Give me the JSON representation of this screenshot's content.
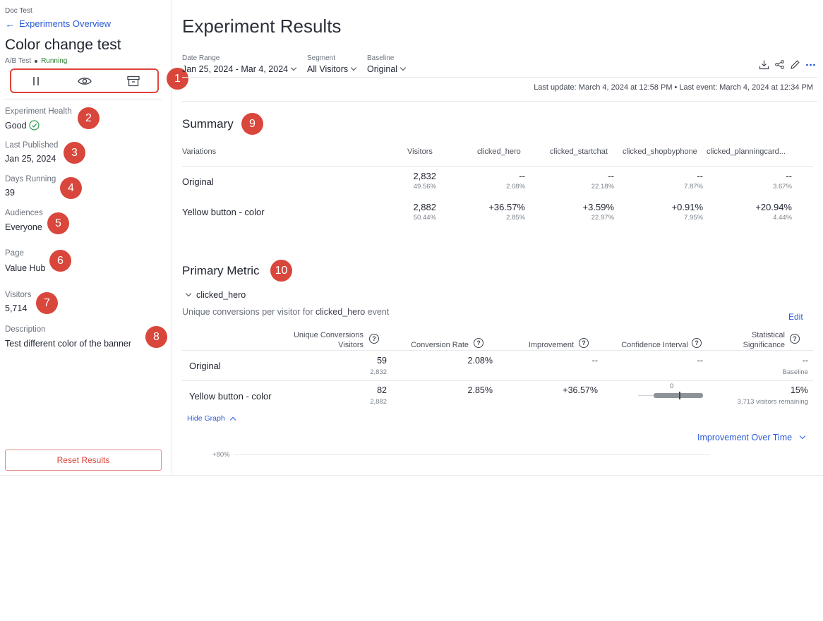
{
  "sidebar": {
    "doc_label": "Doc Test",
    "back_link": "Experiments Overview",
    "title": "Color change test",
    "type": "A/B Test",
    "status": "Running",
    "fields": [
      {
        "label": "Experiment Health",
        "value": "Good",
        "badge": "2"
      },
      {
        "label": "Last Published",
        "value": "Jan 25, 2024",
        "badge": "3"
      },
      {
        "label": "Days Running",
        "value": "39",
        "badge": "4"
      },
      {
        "label": "Audiences",
        "value": "Everyone",
        "badge": "5"
      },
      {
        "label": "Page",
        "value": "Value Hub",
        "badge": "6"
      },
      {
        "label": "Visitors",
        "value": "5,714",
        "badge": "7"
      },
      {
        "label": "Description",
        "value": "Test different color of the banner",
        "badge": "8"
      }
    ],
    "actions_badge": "1",
    "reset_label": "Reset Results"
  },
  "header": {
    "title": "Experiment Results",
    "filters": [
      {
        "label": "Date Range",
        "value": "Jan 25, 2024 - Mar 4, 2024"
      },
      {
        "label": "Segment",
        "value": "All Visitors"
      },
      {
        "label": "Baseline",
        "value": "Original"
      }
    ],
    "last_update": "Last update: March 4, 2024 at 12:58 PM • Last event: March 4, 2024 at 12:34 PM"
  },
  "summary": {
    "title": "Summary",
    "badge": "9",
    "headers": [
      "Variations",
      "Visitors",
      "clicked_hero",
      "clicked_startchat",
      "clicked_shopbyphone",
      "clicked_planningcard..."
    ],
    "rows": [
      {
        "name": "Original",
        "cells": [
          {
            "v": "2,832",
            "s": "49.56%"
          },
          {
            "v": "--",
            "s": "2.08%"
          },
          {
            "v": "--",
            "s": "22.18%"
          },
          {
            "v": "--",
            "s": "7.87%"
          },
          {
            "v": "--",
            "s": "3.67%"
          }
        ]
      },
      {
        "name": "Yellow button - color",
        "cells": [
          {
            "v": "2,882",
            "s": "50.44%"
          },
          {
            "v": "+36.57%",
            "s": "2.85%"
          },
          {
            "v": "+3.59%",
            "s": "22.97%"
          },
          {
            "v": "+0.91%",
            "s": "7.95%"
          },
          {
            "v": "+20.94%",
            "s": "4.44%"
          }
        ]
      }
    ]
  },
  "primary": {
    "title": "Primary Metric",
    "badge": "10",
    "metric_name": "clicked_hero",
    "desc_prefix": "Unique conversions per visitor for ",
    "desc_event": "clicked_hero",
    "desc_suffix": " event",
    "edit_label": "Edit",
    "headers": {
      "uc_line1": "Unique Conversions",
      "uc_line2": "Visitors",
      "conversion_rate": "Conversion Rate",
      "improvement": "Improvement",
      "confidence": "Confidence Interval",
      "sig_line1": "Statistical",
      "sig_line2": "Significance"
    },
    "rows": [
      {
        "name": "Original",
        "conversions": "59",
        "visitors": "2,832",
        "rate": "2.08%",
        "improvement": "--",
        "ci": "--",
        "sig": "--",
        "sig_sub": "Baseline"
      },
      {
        "name": "Yellow button - color",
        "conversions": "82",
        "visitors": "2,882",
        "rate": "2.85%",
        "improvement": "+36.57%",
        "ci_zero": "0",
        "sig": "15%",
        "sig_sub": "3,713 visitors remaining"
      }
    ],
    "hide_graph": "Hide Graph",
    "chart_selector": "Improvement Over Time",
    "graph_tick": "+80%"
  }
}
